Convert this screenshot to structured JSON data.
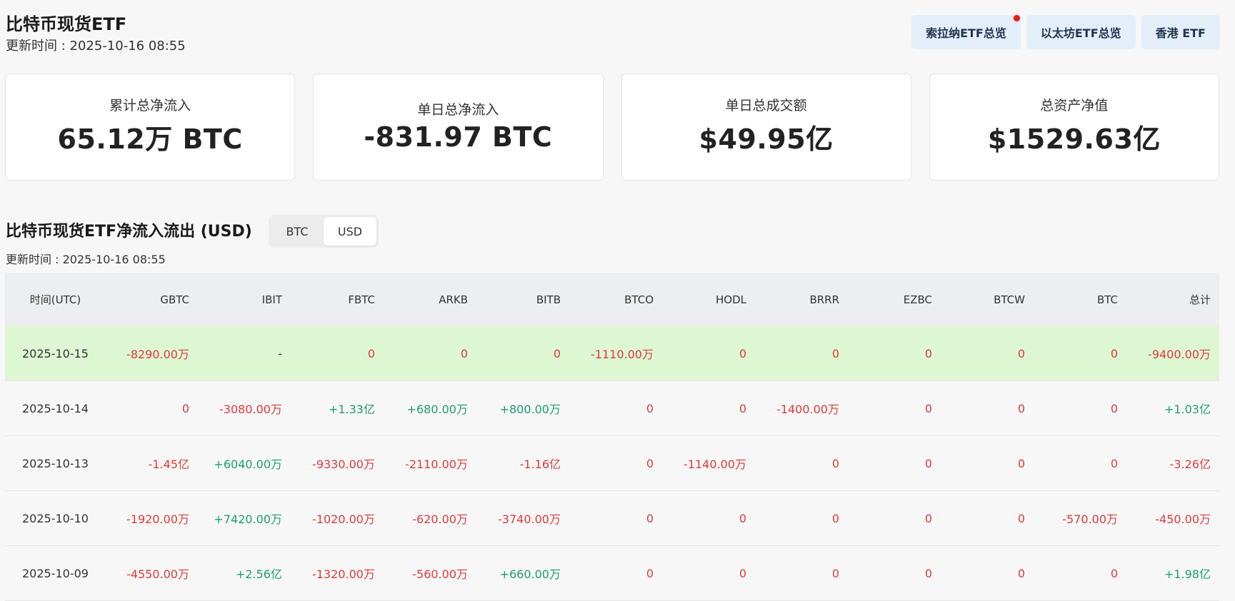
{
  "header": {
    "title": "比特币现货ETF",
    "update_time": "更新时间 : 2025-10-16 08:55"
  },
  "top_buttons": [
    {
      "label": "索拉纳ETF总览",
      "has_dot": true
    },
    {
      "label": "以太坊ETF总览",
      "has_dot": false
    },
    {
      "label": "香港 ETF",
      "has_dot": false
    }
  ],
  "cards": [
    {
      "label": "累计总净流入",
      "value": "65.12万 BTC"
    },
    {
      "label": "单日总净流入",
      "value": "-831.97 BTC"
    },
    {
      "label": "单日总成交额",
      "value": "$49.95亿"
    },
    {
      "label": "总资产净值",
      "value": "$1529.63亿"
    }
  ],
  "flow_section": {
    "title": "比特币现货ETF净流入流出 (USD)",
    "update_time": "更新时间 : 2025-10-16 08:55",
    "toggle": {
      "options": [
        "BTC",
        "USD"
      ],
      "selected": "USD"
    }
  },
  "table": {
    "columns": [
      "时间(UTC)",
      "GBTC",
      "IBIT",
      "FBTC",
      "ARKB",
      "BITB",
      "BTCO",
      "HODL",
      "BRRR",
      "EZBC",
      "BTCW",
      "BTC",
      "总计"
    ],
    "rows": [
      {
        "highlight": true,
        "cells": [
          "2025-10-15",
          "-8290.00万",
          "-",
          "0",
          "0",
          "0",
          "-1110.00万",
          "0",
          "0",
          "0",
          "0",
          "0",
          "-9400.00万"
        ]
      },
      {
        "highlight": false,
        "cells": [
          "2025-10-14",
          "0",
          "-3080.00万",
          "+1.33亿",
          "+680.00万",
          "+800.00万",
          "0",
          "0",
          "-1400.00万",
          "0",
          "0",
          "0",
          "+1.03亿"
        ]
      },
      {
        "highlight": false,
        "cells": [
          "2025-10-13",
          "-1.45亿",
          "+6040.00万",
          "-9330.00万",
          "-2110.00万",
          "-1.16亿",
          "0",
          "-1140.00万",
          "0",
          "0",
          "0",
          "0",
          "-3.26亿"
        ]
      },
      {
        "highlight": false,
        "cells": [
          "2025-10-10",
          "-1920.00万",
          "+7420.00万",
          "-1020.00万",
          "-620.00万",
          "-3740.00万",
          "0",
          "0",
          "0",
          "0",
          "0",
          "-570.00万",
          "-450.00万"
        ]
      },
      {
        "highlight": false,
        "cells": [
          "2025-10-09",
          "-4550.00万",
          "+2.56亿",
          "-1320.00万",
          "-560.00万",
          "+660.00万",
          "0",
          "0",
          "0",
          "0",
          "0",
          "0",
          "+1.98亿"
        ]
      }
    ]
  },
  "colors": {
    "negative": "#e03a3a",
    "positive": "#1c9e6e",
    "highlight_row": "#ddf7d2",
    "button_bg": "#e4eef9"
  }
}
